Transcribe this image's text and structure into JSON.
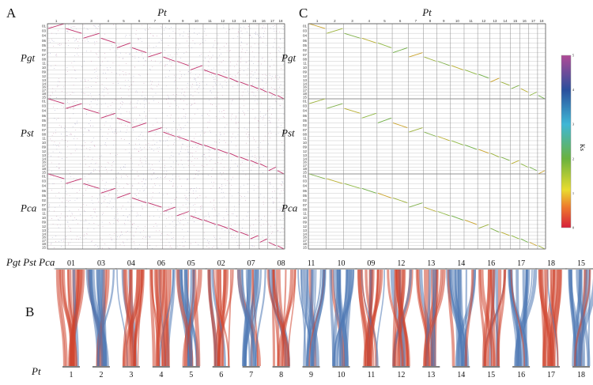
{
  "panels": {
    "A": {
      "letter": "A",
      "x_title": "Pt",
      "row_titles": [
        "Pgt",
        "Pst",
        "Pca"
      ]
    },
    "C": {
      "letter": "C",
      "x_title": "Pt",
      "row_titles": [
        "Pgt",
        "Pst",
        "Pca"
      ]
    },
    "B": {
      "letter": "B",
      "top_title": "Pgt Pst Pca",
      "bottom_title": "Pt"
    }
  },
  "pt_chromosomes": [
    "1",
    "2",
    "3",
    "4",
    "5",
    "6",
    "7",
    "8",
    "9",
    "10",
    "11",
    "12",
    "13",
    "14",
    "15",
    "16",
    "17",
    "18"
  ],
  "query_chromosomes": [
    "01",
    "03",
    "04",
    "06",
    "05",
    "02",
    "07",
    "08",
    "11",
    "10",
    "09",
    "12",
    "13",
    "14",
    "16",
    "17",
    "18",
    "15"
  ],
  "synteny_groups": [
    {
      "top": "01",
      "bottom": "1",
      "color": "red"
    },
    {
      "top": "03",
      "bottom": "2",
      "color": "blue"
    },
    {
      "top": "04",
      "bottom": "3",
      "color": "red"
    },
    {
      "top": "06",
      "bottom": "4",
      "color": "red"
    },
    {
      "top": "05",
      "bottom": "5",
      "color": "blue"
    },
    {
      "top": "02",
      "bottom": "6",
      "color": "red"
    },
    {
      "top": "07",
      "bottom": "7",
      "color": "blue"
    },
    {
      "top": "08",
      "bottom": "8",
      "color": "red"
    },
    {
      "top": "11",
      "bottom": "9",
      "color": "blue"
    },
    {
      "top": "10",
      "bottom": "10",
      "color": "blue"
    },
    {
      "top": "09",
      "bottom": "11",
      "color": "red"
    },
    {
      "top": "12",
      "bottom": "12",
      "color": "red"
    },
    {
      "top": "13",
      "bottom": "13",
      "color": "red"
    },
    {
      "top": "14",
      "bottom": "14",
      "color": "blue"
    },
    {
      "top": "16",
      "bottom": "15",
      "color": "red"
    },
    {
      "top": "17",
      "bottom": "16",
      "color": "blue"
    },
    {
      "top": "18",
      "bottom": "17",
      "color": "red"
    },
    {
      "top": "15",
      "bottom": "18",
      "color": "blue"
    }
  ],
  "colorbar": {
    "label": "Ks",
    "ticks": [
      "0",
      "1",
      "2",
      "3",
      "4",
      "5"
    ],
    "range": [
      0,
      5
    ]
  },
  "colors": {
    "red": "#d0452f",
    "blue": "#4f79b4",
    "dot": "#c0306a"
  }
}
